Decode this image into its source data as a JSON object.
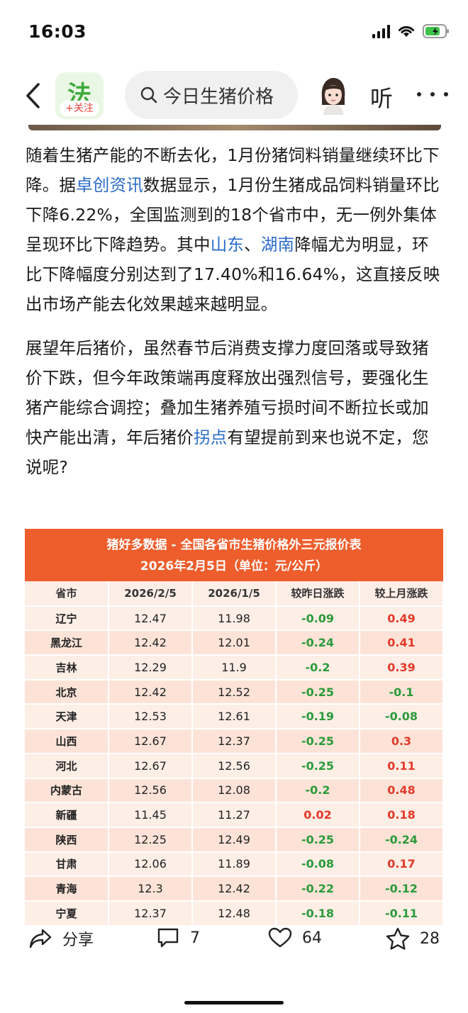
{
  "status": {
    "time": "16:03"
  },
  "nav": {
    "logo_glyph": "法",
    "follow_label": "+关注",
    "search_text": "今日生猪价格",
    "listen_label": "听"
  },
  "article": {
    "p1": [
      {
        "t": "随着生猪产能的不断去化，1月份猪饲料销量继续环比下降。据"
      },
      {
        "t": "卓创资讯",
        "link": true
      },
      {
        "t": "数据显示，1月份生猪成品饲料销量环比下降6.22%，全国监测到的18个省市中，无一例外集体呈现环比下降趋势。其中"
      },
      {
        "t": "山东",
        "link": true
      },
      {
        "t": "、"
      },
      {
        "t": "湖南",
        "link": true
      },
      {
        "t": "降幅尤为明显，环比下降幅度分别达到了17.40%和16.64%，这直接反映出市场产能去化效果越来越明显。"
      }
    ],
    "p2": [
      {
        "t": "展望年后猪价，虽然春节后消费支撑力度回落或导致猪价下跌，但今年政策端再度释放出强烈信号，要强化生猪产能综合调控；叠加生猪养殖亏损时间不断拉长或加快产能出清，年后猪价"
      },
      {
        "t": "拐点",
        "link": true
      },
      {
        "t": "有望提前到来也说不定，您说呢?"
      }
    ]
  },
  "table": {
    "title": "猪好多数据 - 全国各省市生猪价格外三元报价表",
    "subtitle": "2026年2月5日（单位：元/公斤）",
    "columns": [
      "省市",
      "2026/2/5",
      "2026/1/5",
      "较昨日涨跌",
      "较上月涨跌"
    ],
    "rows": [
      [
        "辽宁",
        "12.47",
        "11.98",
        "-0.09",
        "0.49"
      ],
      [
        "黑龙江",
        "12.42",
        "12.01",
        "-0.24",
        "0.41"
      ],
      [
        "吉林",
        "12.29",
        "11.9",
        "-0.2",
        "0.39"
      ],
      [
        "北京",
        "12.42",
        "12.52",
        "-0.25",
        "-0.1"
      ],
      [
        "天津",
        "12.53",
        "12.61",
        "-0.19",
        "-0.08"
      ],
      [
        "山西",
        "12.67",
        "12.37",
        "-0.25",
        "0.3"
      ],
      [
        "河北",
        "12.67",
        "12.56",
        "-0.25",
        "0.11"
      ],
      [
        "内蒙古",
        "12.56",
        "12.08",
        "-0.2",
        "0.48"
      ],
      [
        "新疆",
        "11.45",
        "11.27",
        "0.02",
        "0.18"
      ],
      [
        "陕西",
        "12.25",
        "12.49",
        "-0.25",
        "-0.24"
      ],
      [
        "甘肃",
        "12.06",
        "11.89",
        "-0.08",
        "0.17"
      ],
      [
        "青海",
        "12.3",
        "12.42",
        "-0.22",
        "-0.12"
      ],
      [
        "宁夏",
        "12.37",
        "12.48",
        "-0.18",
        "-0.11"
      ]
    ],
    "up_color": "#e23a2a",
    "down_color": "#2b9a3a",
    "header_color": "#ee5d2c"
  },
  "actions": {
    "share_label": "分享",
    "comment_count": "7",
    "like_count": "64",
    "favorite_count": "28"
  }
}
